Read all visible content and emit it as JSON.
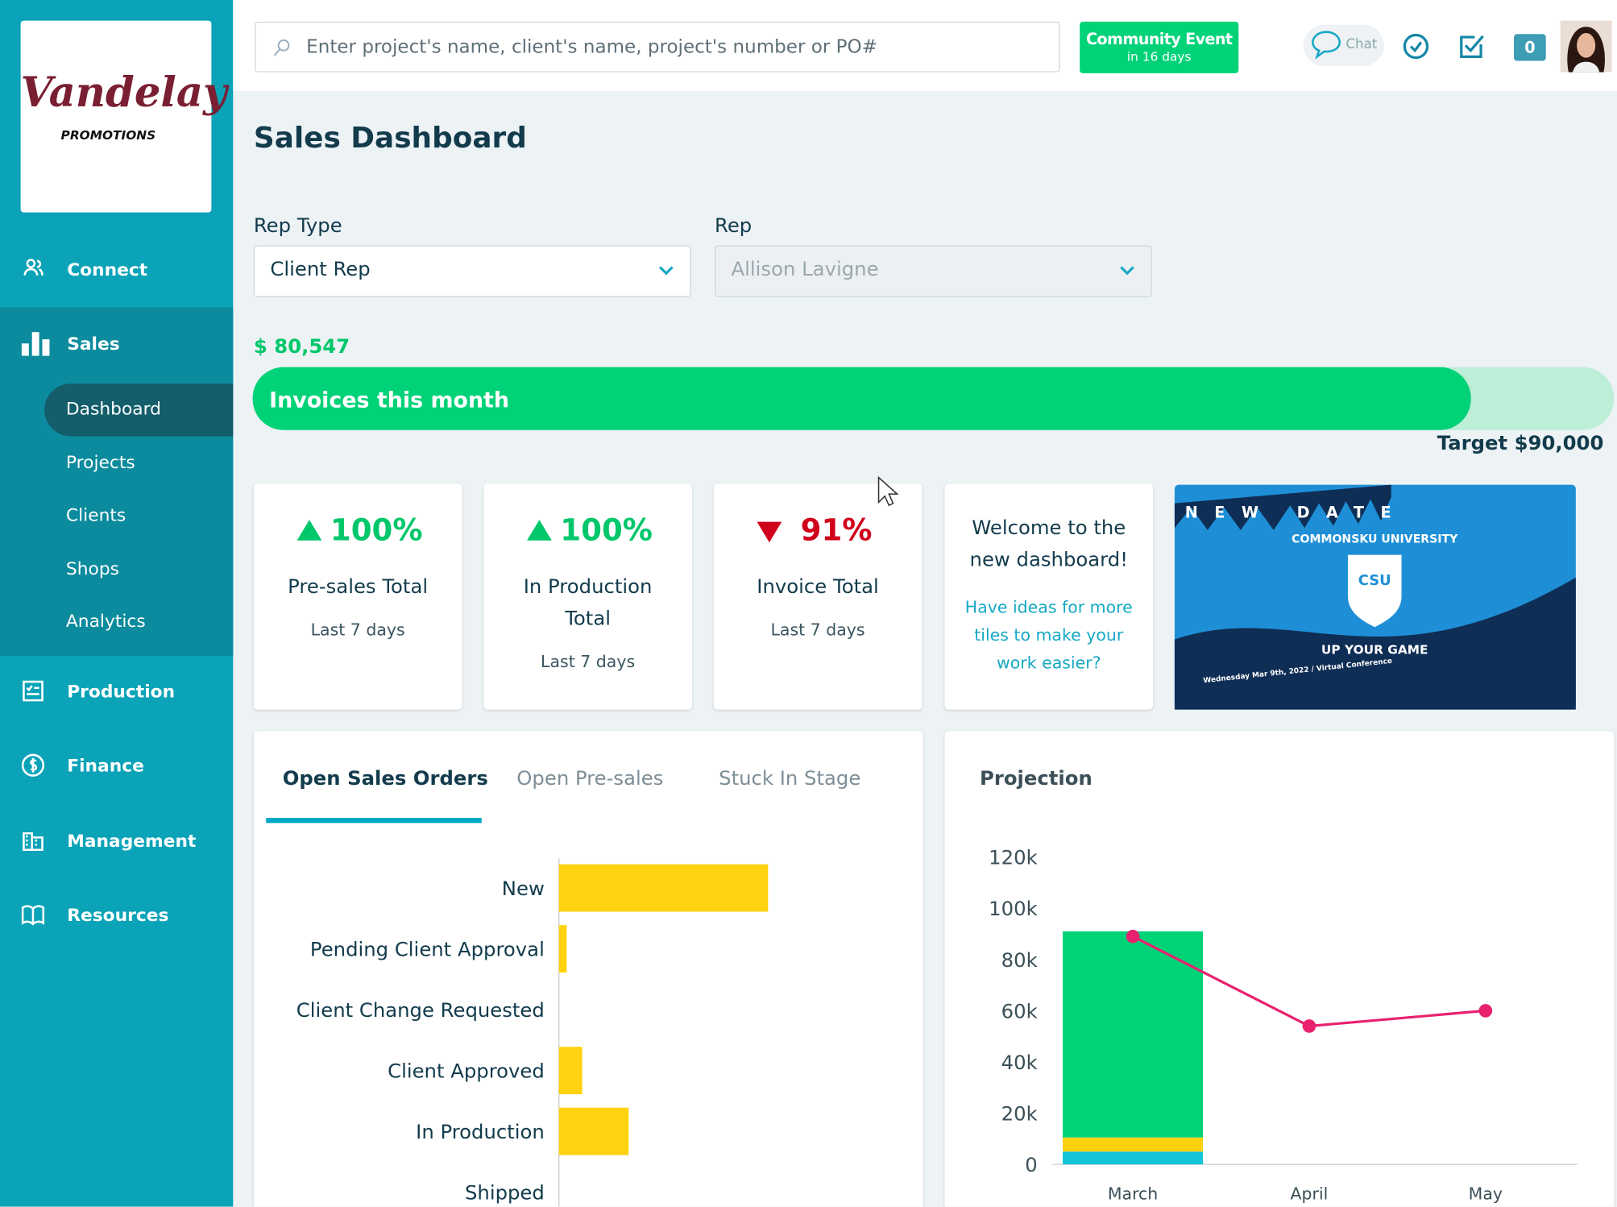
{
  "sidebar": {
    "logo": {
      "name": "Vandelay",
      "tagline": "PROMOTIONS"
    },
    "nav": [
      {
        "label": "Connect"
      },
      {
        "label": "Sales",
        "children": [
          "Dashboard",
          "Projects",
          "Clients",
          "Shops",
          "Analytics"
        ]
      },
      {
        "label": "Production"
      },
      {
        "label": "Finance"
      },
      {
        "label": "Management"
      },
      {
        "label": "Resources"
      }
    ]
  },
  "header": {
    "search_placeholder": "Enter project's name, client's name, project's number or PO#",
    "event": {
      "title": "Community Event",
      "subtitle": "in 16 days"
    },
    "chat": "Chat",
    "badge": 0
  },
  "page": {
    "title": "Sales Dashboard",
    "filters": [
      {
        "label": "Rep Type",
        "value": "Client Rep"
      },
      {
        "label": "Rep",
        "value": "Allison Lavigne"
      }
    ],
    "invoices": {
      "value": 80547,
      "value_label": "$ 80,547",
      "label": "Invoices this month",
      "target": 90000,
      "target_label": "Target $90,000"
    },
    "tiles": [
      {
        "change": "100%",
        "trend": "up",
        "title": "Pre-sales Total",
        "period": "Last 7 days"
      },
      {
        "change": "100%",
        "trend": "up",
        "title": "In Production Total",
        "period": "Last 7 days"
      },
      {
        "change": "91%",
        "trend": "down",
        "title": "Invoice Total",
        "period": "Last 7 days"
      }
    ],
    "welcome": {
      "title": "Welcome to the new dashboard!",
      "link": "Have ideas for more tiles to make your work easier?"
    },
    "banner": {
      "headline": "NEW DATE",
      "name": "COMMONSKU UNIVERSITY",
      "badge": "CSU",
      "slogan": "UP YOUR GAME",
      "date": "Wednesday Mar 9th, 2022 / Virtual Conference"
    },
    "tabs": [
      "Open Sales Orders",
      "Open Pre-sales",
      "Stuck In Stage"
    ]
  },
  "chart_data": [
    {
      "type": "bar",
      "orientation": "horizontal",
      "color": "#ffd20f",
      "categories": [
        "New",
        "Pending Client Approval",
        "Client Change Requested",
        "Client Approved",
        "In Production",
        "Shipped"
      ],
      "values": [
        27,
        1,
        0,
        3,
        9,
        0
      ],
      "xlim": [
        0,
        47
      ]
    },
    {
      "type": "bar",
      "stacked": true,
      "title": "Projection",
      "categories": [
        "March",
        "April",
        "May"
      ],
      "series": [
        {
          "color": "#14c3d9",
          "values": [
            5000,
            null,
            null
          ]
        },
        {
          "color": "#ffd20f",
          "values": [
            5500,
            null,
            null
          ]
        },
        {
          "color": "#00d278",
          "values": [
            80500,
            null,
            null
          ]
        },
        {
          "type": "line",
          "color": "#e8226e",
          "values": [
            89000,
            54000,
            60000
          ]
        }
      ],
      "ylim": [
        0,
        120000
      ],
      "yticks": [
        0,
        {
          "value": 20000,
          "label": "20k"
        },
        {
          "value": 40000,
          "label": "40k"
        },
        {
          "value": 60000,
          "label": "60k"
        },
        {
          "value": 80000,
          "label": "80k"
        },
        {
          "value": 100000,
          "label": "100k"
        },
        {
          "value": 120000,
          "label": "120k"
        }
      ]
    }
  ]
}
